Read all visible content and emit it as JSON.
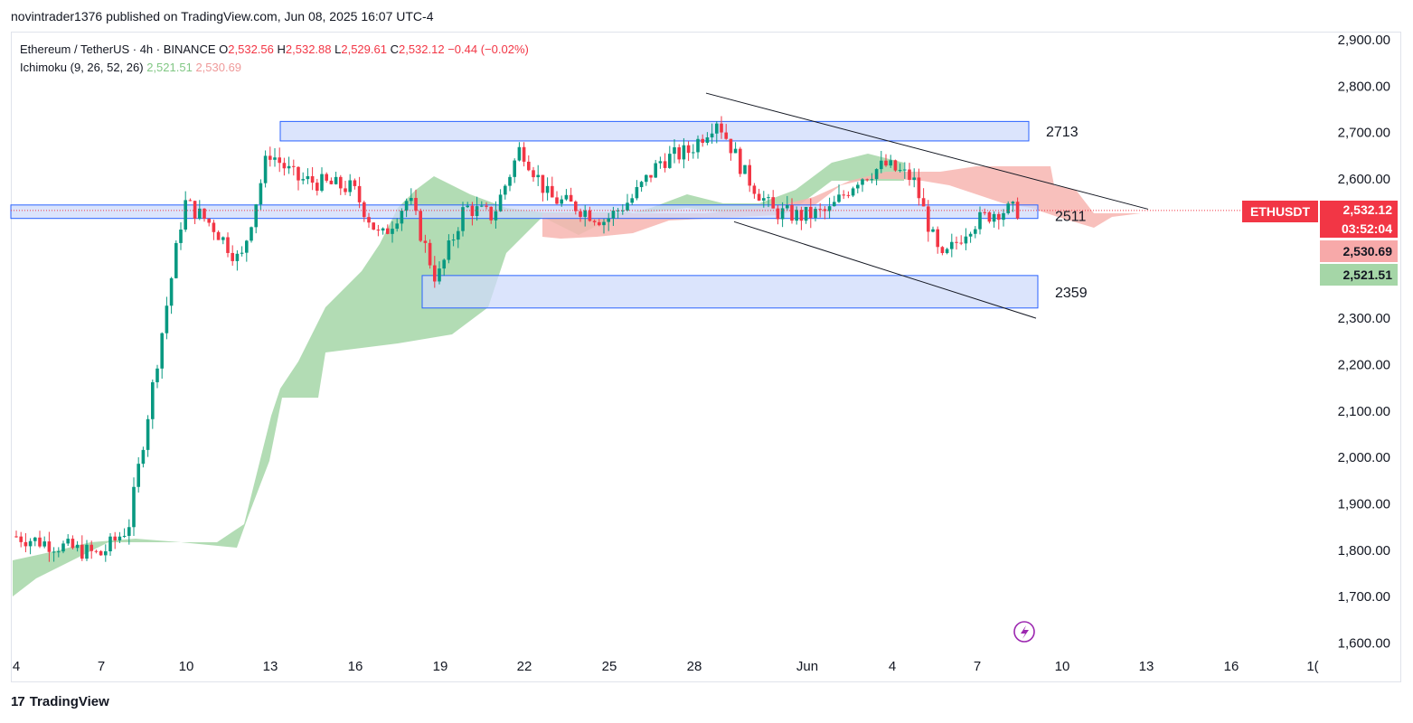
{
  "header": {
    "author_line": "novintrader1376 published on TradingView.com, Jun 08, 2025 16:07 UTC-4"
  },
  "legend": {
    "symbol": "Ethereum / TetherUS · 4h · BINANCE",
    "o_label": "O",
    "o_value": "2,532.56",
    "h_label": "H",
    "h_value": "2,532.88",
    "l_label": "L",
    "l_value": "2,529.61",
    "c_label": "C",
    "c_value": "2,532.12",
    "change": "−0.44 (−0.02%)",
    "indicator": "Ichimoku (9, 26, 52, 26)",
    "ind_val1": "2,521.51",
    "ind_val2": "2,530.69"
  },
  "price_axis": {
    "labels": [
      "2,900.00",
      "2,800.00",
      "2,700.00",
      "2,600.00",
      "2,500.00",
      "2,400.00",
      "2,300.00",
      "2,200.00",
      "2,100.00",
      "2,000.00",
      "1,900.00",
      "1,800.00",
      "1,700.00",
      "1,600.00"
    ],
    "symbol_tag": "ETHUSDT",
    "price_tag": "2,532.12",
    "countdown_tag": "03:52:04",
    "kijun_tag": "2,530.69",
    "tenkan_tag": "2,521.51"
  },
  "time_axis": {
    "labels": [
      "4",
      "7",
      "10",
      "13",
      "16",
      "19",
      "22",
      "25",
      "28",
      "Jun",
      "4",
      "7",
      "10",
      "13",
      "16",
      "1("
    ]
  },
  "footer": {
    "brand": "TradingView",
    "logo": "17"
  },
  "colors": {
    "up": "#089981",
    "down": "#f23645",
    "zone_fill": "#cfdbfb",
    "zone_border": "#2962ff",
    "cloud_bull": "#a5d6a7",
    "cloud_bear": "#f7b5b0",
    "tag_red": "#f23645"
  },
  "chart_data": {
    "type": "candlestick",
    "title": "Ethereum / TetherUS · 4h · BINANCE",
    "ylim": [
      1580,
      2920
    ],
    "current_price": 2532.12,
    "zones": [
      {
        "label": "2713",
        "low": 2682,
        "high": 2724
      },
      {
        "label": "2511",
        "low": 2515,
        "high": 2544
      },
      {
        "label": "2359",
        "low": 2322,
        "high": 2392
      }
    ],
    "trendlines": [
      {
        "name": "upper",
        "from": [
          "May 29",
          2785
        ],
        "to": [
          "Jun 13",
          2535
        ]
      },
      {
        "name": "lower",
        "from": [
          "May 30",
          2508
        ],
        "to": [
          "Jun 9",
          2300
        ]
      }
    ],
    "candles_summary": [
      {
        "date": "May 4",
        "price": 1830
      },
      {
        "date": "May 7",
        "price": 1790
      },
      {
        "date": "May 8",
        "price": 1850
      },
      {
        "date": "May 9",
        "price": 2200
      },
      {
        "date": "May 10",
        "price": 2550
      },
      {
        "date": "May 11",
        "price": 2500
      },
      {
        "date": "May 12",
        "price": 2420
      },
      {
        "date": "May 13",
        "price": 2660
      },
      {
        "date": "May 14",
        "price": 2600
      },
      {
        "date": "May 16",
        "price": 2580
      },
      {
        "date": "May 17",
        "price": 2470
      },
      {
        "date": "May 18",
        "price": 2560
      },
      {
        "date": "May 19",
        "price": 2380
      },
      {
        "date": "May 20",
        "price": 2540
      },
      {
        "date": "May 21",
        "price": 2520
      },
      {
        "date": "May 22",
        "price": 2670
      },
      {
        "date": "May 23",
        "price": 2560
      },
      {
        "date": "May 24",
        "price": 2540
      },
      {
        "date": "May 25",
        "price": 2510
      },
      {
        "date": "May 26",
        "price": 2560
      },
      {
        "date": "May 27",
        "price": 2640
      },
      {
        "date": "May 28",
        "price": 2660
      },
      {
        "date": "May 29",
        "price": 2730
      },
      {
        "date": "May 30",
        "price": 2610
      },
      {
        "date": "May 31",
        "price": 2530
      },
      {
        "date": "Jun 1",
        "price": 2520
      },
      {
        "date": "Jun 2",
        "price": 2530
      },
      {
        "date": "Jun 3",
        "price": 2600
      },
      {
        "date": "Jun 4",
        "price": 2630
      },
      {
        "date": "Jun 5",
        "price": 2600
      },
      {
        "date": "Jun 6",
        "price": 2420
      },
      {
        "date": "Jun 7",
        "price": 2500
      },
      {
        "date": "Jun 8",
        "price": 2532
      }
    ]
  }
}
